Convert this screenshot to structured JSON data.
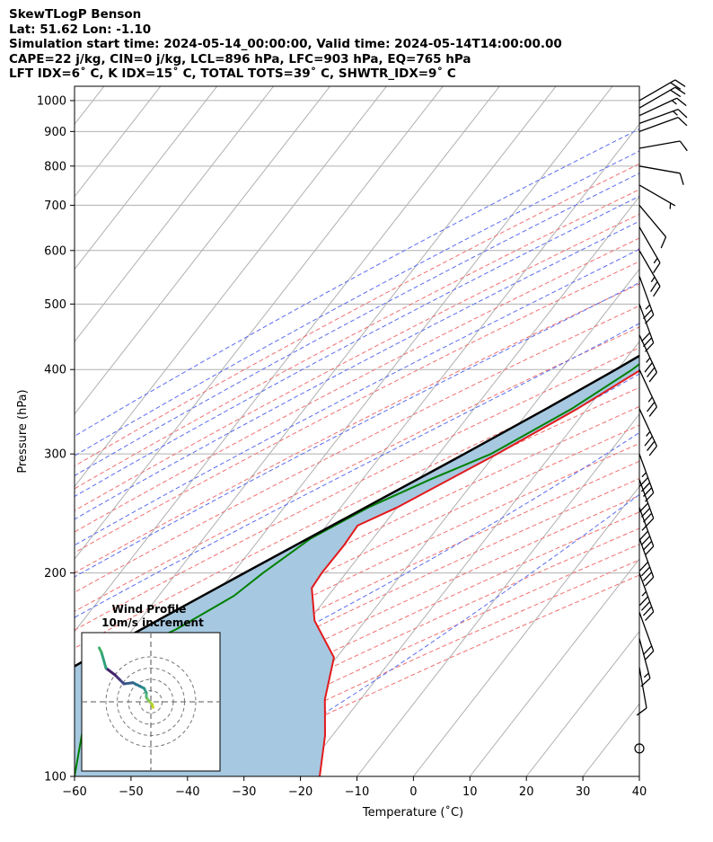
{
  "header": {
    "line1": "SkewTLogP Benson",
    "line2": "Lat: 51.62   Lon: -1.10",
    "line3": "Simulation start time: 2024-05-14_00:00:00, Valid time: 2024-05-14T14:00:00.00",
    "line4": "CAPE=22 j/kg, CIN=0 j/kg, LCL=896 hPa, LFC=903 hPa, EQ=765 hPa",
    "line5": "LFT IDX=6˚ C, K IDX=15˚ C, TOTAL TOTS=39˚ C, SHWTR_IDX=9˚ C"
  },
  "chart_data": {
    "type": "skewt",
    "xlabel": "Temperature (˚C)",
    "ylabel": "Pressure (hPa)",
    "xlim": [
      -60,
      40
    ],
    "ylim": [
      1050,
      100
    ],
    "x_ticks": [
      -60,
      -50,
      -40,
      -30,
      -20,
      -10,
      0,
      10,
      20,
      30,
      40
    ],
    "y_ticks": [
      1000,
      900,
      800,
      700,
      600,
      500,
      400,
      300,
      200,
      100
    ],
    "temperature": [
      {
        "p": 990,
        "t": 18.5
      },
      {
        "p": 925,
        "t": 12.5
      },
      {
        "p": 900,
        "t": 10.8
      },
      {
        "p": 850,
        "t": 10.2
      },
      {
        "p": 800,
        "t": 9.8
      },
      {
        "p": 750,
        "t": 9.0
      },
      {
        "p": 700,
        "t": 6.8
      },
      {
        "p": 650,
        "t": 3.8
      },
      {
        "p": 600,
        "t": 0.5
      },
      {
        "p": 550,
        "t": -2.6
      },
      {
        "p": 500,
        "t": -6.4
      },
      {
        "p": 450,
        "t": -10.9
      },
      {
        "p": 400,
        "t": -15.8
      },
      {
        "p": 350,
        "t": -21.7
      },
      {
        "p": 300,
        "t": -29.7
      },
      {
        "p": 250,
        "t": -40.0
      },
      {
        "p": 235,
        "t": -44.5
      },
      {
        "p": 220,
        "t": -44.2
      },
      {
        "p": 200,
        "t": -44.3
      },
      {
        "p": 190,
        "t": -44.0
      },
      {
        "p": 170,
        "t": -39.0
      },
      {
        "p": 150,
        "t": -30.5
      },
      {
        "p": 130,
        "t": -26.3
      },
      {
        "p": 115,
        "t": -21.3
      },
      {
        "p": 100,
        "t": -16.6
      }
    ],
    "dewpoint": [
      {
        "p": 980,
        "t": 12.0
      },
      {
        "p": 925,
        "t": 11.0
      },
      {
        "p": 900,
        "t": 9.0
      },
      {
        "p": 850,
        "t": 5.0
      },
      {
        "p": 800,
        "t": 0.5
      },
      {
        "p": 750,
        "t": -4.5
      },
      {
        "p": 700,
        "t": -11.0
      },
      {
        "p": 650,
        "t": -12.5
      },
      {
        "p": 600,
        "t": -14.4
      },
      {
        "p": 550,
        "t": -17.7
      },
      {
        "p": 500,
        "t": -12.8
      },
      {
        "p": 450,
        "t": -14.0
      },
      {
        "p": 400,
        "t": -17.4
      },
      {
        "p": 350,
        "t": -22.7
      },
      {
        "p": 300,
        "t": -30.8
      },
      {
        "p": 275,
        "t": -38.0
      },
      {
        "p": 250,
        "t": -45.1
      },
      {
        "p": 225,
        "t": -51.0
      },
      {
        "p": 200,
        "t": -54.7
      },
      {
        "p": 185,
        "t": -56.7
      },
      {
        "p": 165,
        "t": -62.3
      },
      {
        "p": 150,
        "t": -69.2
      },
      {
        "p": 140,
        "t": -71.2
      },
      {
        "p": 125,
        "t": -67.0
      },
      {
        "p": 100,
        "t": -60.0
      }
    ],
    "parcel": [
      {
        "p": 990,
        "t": 18.5
      },
      {
        "p": 925,
        "t": 12.6
      },
      {
        "p": 896,
        "t": 10.3
      },
      {
        "p": 850,
        "t": 9.0
      },
      {
        "p": 800,
        "t": 7.3
      },
      {
        "p": 750,
        "t": 5.4
      },
      {
        "p": 700,
        "t": 3.3
      },
      {
        "p": 650,
        "t": 0.6
      },
      {
        "p": 600,
        "t": -2.3
      },
      {
        "p": 550,
        "t": -5.8
      },
      {
        "p": 500,
        "t": -9.8
      },
      {
        "p": 450,
        "t": -14.6
      },
      {
        "p": 400,
        "t": -20.3
      },
      {
        "p": 350,
        "t": -27.2
      },
      {
        "p": 300,
        "t": -35.5
      },
      {
        "p": 250,
        "t": -45.6
      },
      {
        "p": 200,
        "t": -58.0
      },
      {
        "p": 150,
        "t": -73.7
      },
      {
        "p": 100,
        "t": -94.0
      }
    ],
    "parcel_dewpoint": [
      {
        "p": 980,
        "t": 12.0
      },
      {
        "p": 896,
        "t": 10.3
      }
    ],
    "wind_barbs": [
      {
        "p": 1000,
        "speed_kt": 20,
        "dir": 240
      },
      {
        "p": 975,
        "speed_kt": 20,
        "dir": 240
      },
      {
        "p": 950,
        "speed_kt": 15,
        "dir": 245
      },
      {
        "p": 925,
        "speed_kt": 15,
        "dir": 250
      },
      {
        "p": 900,
        "speed_kt": 10,
        "dir": 250
      },
      {
        "p": 850,
        "speed_kt": 10,
        "dir": 260
      },
      {
        "p": 800,
        "speed_kt": 10,
        "dir": 280
      },
      {
        "p": 750,
        "speed_kt": 5,
        "dir": 300
      },
      {
        "p": 700,
        "speed_kt": 10,
        "dir": 320
      },
      {
        "p": 650,
        "speed_kt": 15,
        "dir": 330
      },
      {
        "p": 600,
        "speed_kt": 25,
        "dir": 330
      },
      {
        "p": 550,
        "speed_kt": 25,
        "dir": 340
      },
      {
        "p": 500,
        "speed_kt": 30,
        "dir": 340
      },
      {
        "p": 450,
        "speed_kt": 35,
        "dir": 335
      },
      {
        "p": 400,
        "speed_kt": 25,
        "dir": 335
      },
      {
        "p": 350,
        "speed_kt": 35,
        "dir": 335
      },
      {
        "p": 300,
        "speed_kt": 45,
        "dir": 340
      },
      {
        "p": 275,
        "speed_kt": 40,
        "dir": 340
      },
      {
        "p": 250,
        "speed_kt": 45,
        "dir": 340
      },
      {
        "p": 225,
        "speed_kt": 40,
        "dir": 340
      },
      {
        "p": 200,
        "speed_kt": 45,
        "dir": 340
      },
      {
        "p": 175,
        "speed_kt": 20,
        "dir": 340
      },
      {
        "p": 160,
        "speed_kt": 15,
        "dir": 345
      },
      {
        "p": 145,
        "speed_kt": 10,
        "dir": 350
      },
      {
        "p": 110,
        "speed_kt": 0,
        "dir": 0
      }
    ],
    "hodograph": {
      "title": "Wind Profile",
      "subtitle": "10m/s increment",
      "u": [
        1.0,
        0.5,
        -1.0,
        -2.0,
        -2.0,
        -3.0,
        -5.0,
        -8.0,
        -12.0,
        -14.0,
        -16.0,
        -20.0,
        -22.0,
        -23.0
      ],
      "v": [
        -2.5,
        -1.0,
        0.5,
        2.0,
        4.0,
        6.0,
        7.0,
        8.5,
        8.0,
        10.0,
        12.0,
        15.0,
        22.0,
        24.0
      ]
    },
    "colors": {
      "temperature": "#e31a1c",
      "dewpoint": "#008000",
      "parcel": "#000000",
      "cape_fill": "#a6c8e0",
      "dry_adiabat": "#f07070",
      "moist_adiabat": "#5a6cf0",
      "mixing_ratio": "#9a3fd6",
      "isotherm": "#b0b0b0"
    }
  }
}
